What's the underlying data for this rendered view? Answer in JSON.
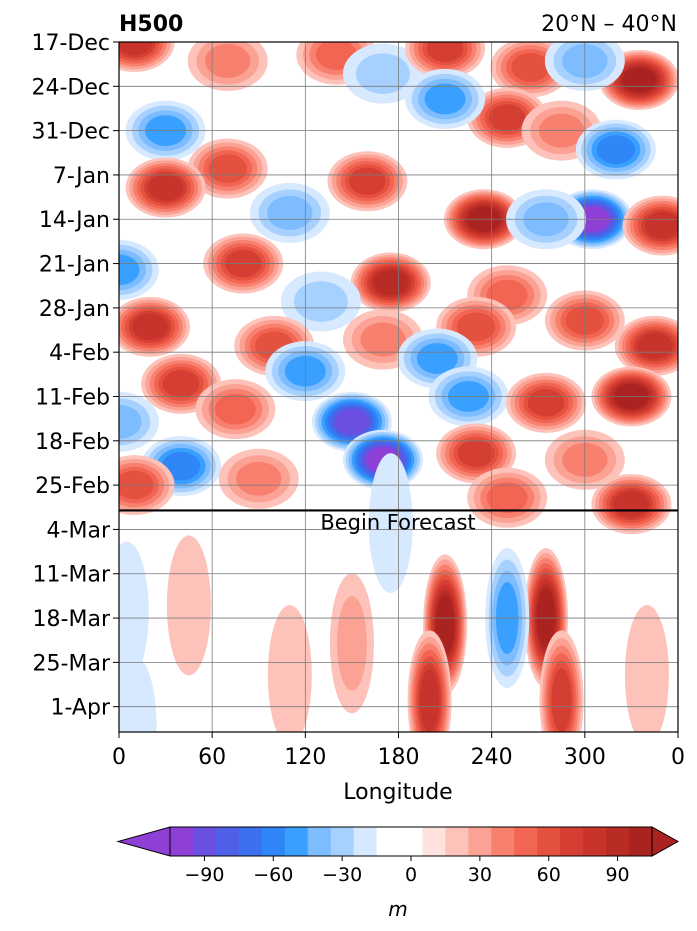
{
  "chart_data": {
    "type": "heatmap",
    "title": "H500",
    "subtitle": "20°N – 40°N",
    "xlabel": "Longitude",
    "ylabel": "",
    "x_ticks": [
      "0",
      "60",
      "120",
      "180",
      "240",
      "300",
      "0"
    ],
    "y_ticks": [
      "17-Dec",
      "24-Dec",
      "31-Dec",
      "7-Jan",
      "14-Jan",
      "21-Jan",
      "28-Jan",
      "4-Feb",
      "11-Feb",
      "18-Feb",
      "25-Feb",
      "4-Mar",
      "11-Mar",
      "18-Mar",
      "25-Mar",
      "1-Apr"
    ],
    "y_range_days": [
      0,
      109
    ],
    "x_range_deg": [
      0,
      360
    ],
    "grid": true,
    "forecast_line": {
      "label": "Begin Forecast",
      "day": 74
    },
    "colorbar": {
      "label": "m",
      "ticks": [
        "−90",
        "−60",
        "−30",
        "0",
        "30",
        "60",
        "90"
      ],
      "levels": [
        -105,
        -95,
        -85,
        -75,
        -65,
        -55,
        -45,
        -35,
        -25,
        -15,
        -5,
        5,
        15,
        25,
        35,
        45,
        55,
        65,
        75,
        85,
        95,
        105
      ],
      "colors": [
        "#8e3fd6",
        "#6a4fe0",
        "#4f5fe8",
        "#3d70ef",
        "#2f86f7",
        "#3aa0ff",
        "#7cbcff",
        "#a6d1ff",
        "#d7e9ff",
        "#ffffff",
        "#ffffff",
        "#fee2de",
        "#fdc3ba",
        "#fca294",
        "#f7806f",
        "#f26553",
        "#e5513f",
        "#d53e33",
        "#c8342b",
        "#b92b25",
        "#ab2320"
      ],
      "extend_low": "#8e3fd6",
      "extend_high": "#ab2320"
    },
    "anomaly_blobs_observed": [
      {
        "lon": 10,
        "day": 0,
        "value": 70
      },
      {
        "lon": 70,
        "day": 3,
        "value": 35
      },
      {
        "lon": 140,
        "day": 2,
        "value": 45
      },
      {
        "lon": 170,
        "day": 5,
        "value": -25
      },
      {
        "lon": 210,
        "day": 1,
        "value": 60
      },
      {
        "lon": 265,
        "day": 4,
        "value": 55
      },
      {
        "lon": 335,
        "day": 6,
        "value": 90
      },
      {
        "lon": 300,
        "day": 3,
        "value": -30
      },
      {
        "lon": 250,
        "day": 12,
        "value": 60
      },
      {
        "lon": 30,
        "day": 14,
        "value": -45
      },
      {
        "lon": 210,
        "day": 9,
        "value": -40
      },
      {
        "lon": 285,
        "day": 14,
        "value": 35
      },
      {
        "lon": 320,
        "day": 17,
        "value": -55
      },
      {
        "lon": 70,
        "day": 20,
        "value": 55
      },
      {
        "lon": 30,
        "day": 23,
        "value": 75
      },
      {
        "lon": 110,
        "day": 27,
        "value": -35
      },
      {
        "lon": 160,
        "day": 22,
        "value": 60
      },
      {
        "lon": 235,
        "day": 28,
        "value": 90
      },
      {
        "lon": 305,
        "day": 28,
        "value": -95
      },
      {
        "lon": 350,
        "day": 29,
        "value": 75
      },
      {
        "lon": 275,
        "day": 28,
        "value": -35
      },
      {
        "lon": 0,
        "day": 36,
        "value": -45
      },
      {
        "lon": 80,
        "day": 35,
        "value": 65
      },
      {
        "lon": 175,
        "day": 38,
        "value": 80
      },
      {
        "lon": 250,
        "day": 40,
        "value": 45
      },
      {
        "lon": 130,
        "day": 41,
        "value": -25
      },
      {
        "lon": 20,
        "day": 45,
        "value": 75
      },
      {
        "lon": 230,
        "day": 45,
        "value": 50
      },
      {
        "lon": 300,
        "day": 44,
        "value": 55
      },
      {
        "lon": 345,
        "day": 48,
        "value": 70
      },
      {
        "lon": 100,
        "day": 48,
        "value": 50
      },
      {
        "lon": 170,
        "day": 47,
        "value": 35
      },
      {
        "lon": 205,
        "day": 50,
        "value": -45
      },
      {
        "lon": 120,
        "day": 52,
        "value": -40
      },
      {
        "lon": 40,
        "day": 54,
        "value": 65
      },
      {
        "lon": 225,
        "day": 56,
        "value": -40
      },
      {
        "lon": 275,
        "day": 57,
        "value": 60
      },
      {
        "lon": 330,
        "day": 56,
        "value": 90
      },
      {
        "lon": 150,
        "day": 60,
        "value": -80
      },
      {
        "lon": 0,
        "day": 60,
        "value": -35
      },
      {
        "lon": 75,
        "day": 58,
        "value": 40
      },
      {
        "lon": 170,
        "day": 66,
        "value": -95
      },
      {
        "lon": 40,
        "day": 67,
        "value": -55
      },
      {
        "lon": 230,
        "day": 65,
        "value": 60
      },
      {
        "lon": 300,
        "day": 66,
        "value": 35
      },
      {
        "lon": 90,
        "day": 69,
        "value": 35
      },
      {
        "lon": 330,
        "day": 73,
        "value": 75
      },
      {
        "lon": 250,
        "day": 72,
        "value": 45
      },
      {
        "lon": 10,
        "day": 70,
        "value": 50
      }
    ],
    "anomaly_blobs_forecast": [
      {
        "lon": 210,
        "day": 92,
        "value": 100
      },
      {
        "lon": 275,
        "day": 91,
        "value": 90
      },
      {
        "lon": 200,
        "day": 104,
        "value": 70
      },
      {
        "lon": 285,
        "day": 104,
        "value": 60
      },
      {
        "lon": 150,
        "day": 95,
        "value": 25
      },
      {
        "lon": 110,
        "day": 100,
        "value": 15
      },
      {
        "lon": 250,
        "day": 91,
        "value": -40
      },
      {
        "lon": 5,
        "day": 90,
        "value": -15
      },
      {
        "lon": 45,
        "day": 89,
        "value": 15
      },
      {
        "lon": 340,
        "day": 100,
        "value": 15
      },
      {
        "lon": 175,
        "day": 76,
        "value": -15
      },
      {
        "lon": 10,
        "day": 108,
        "value": -15
      }
    ]
  }
}
